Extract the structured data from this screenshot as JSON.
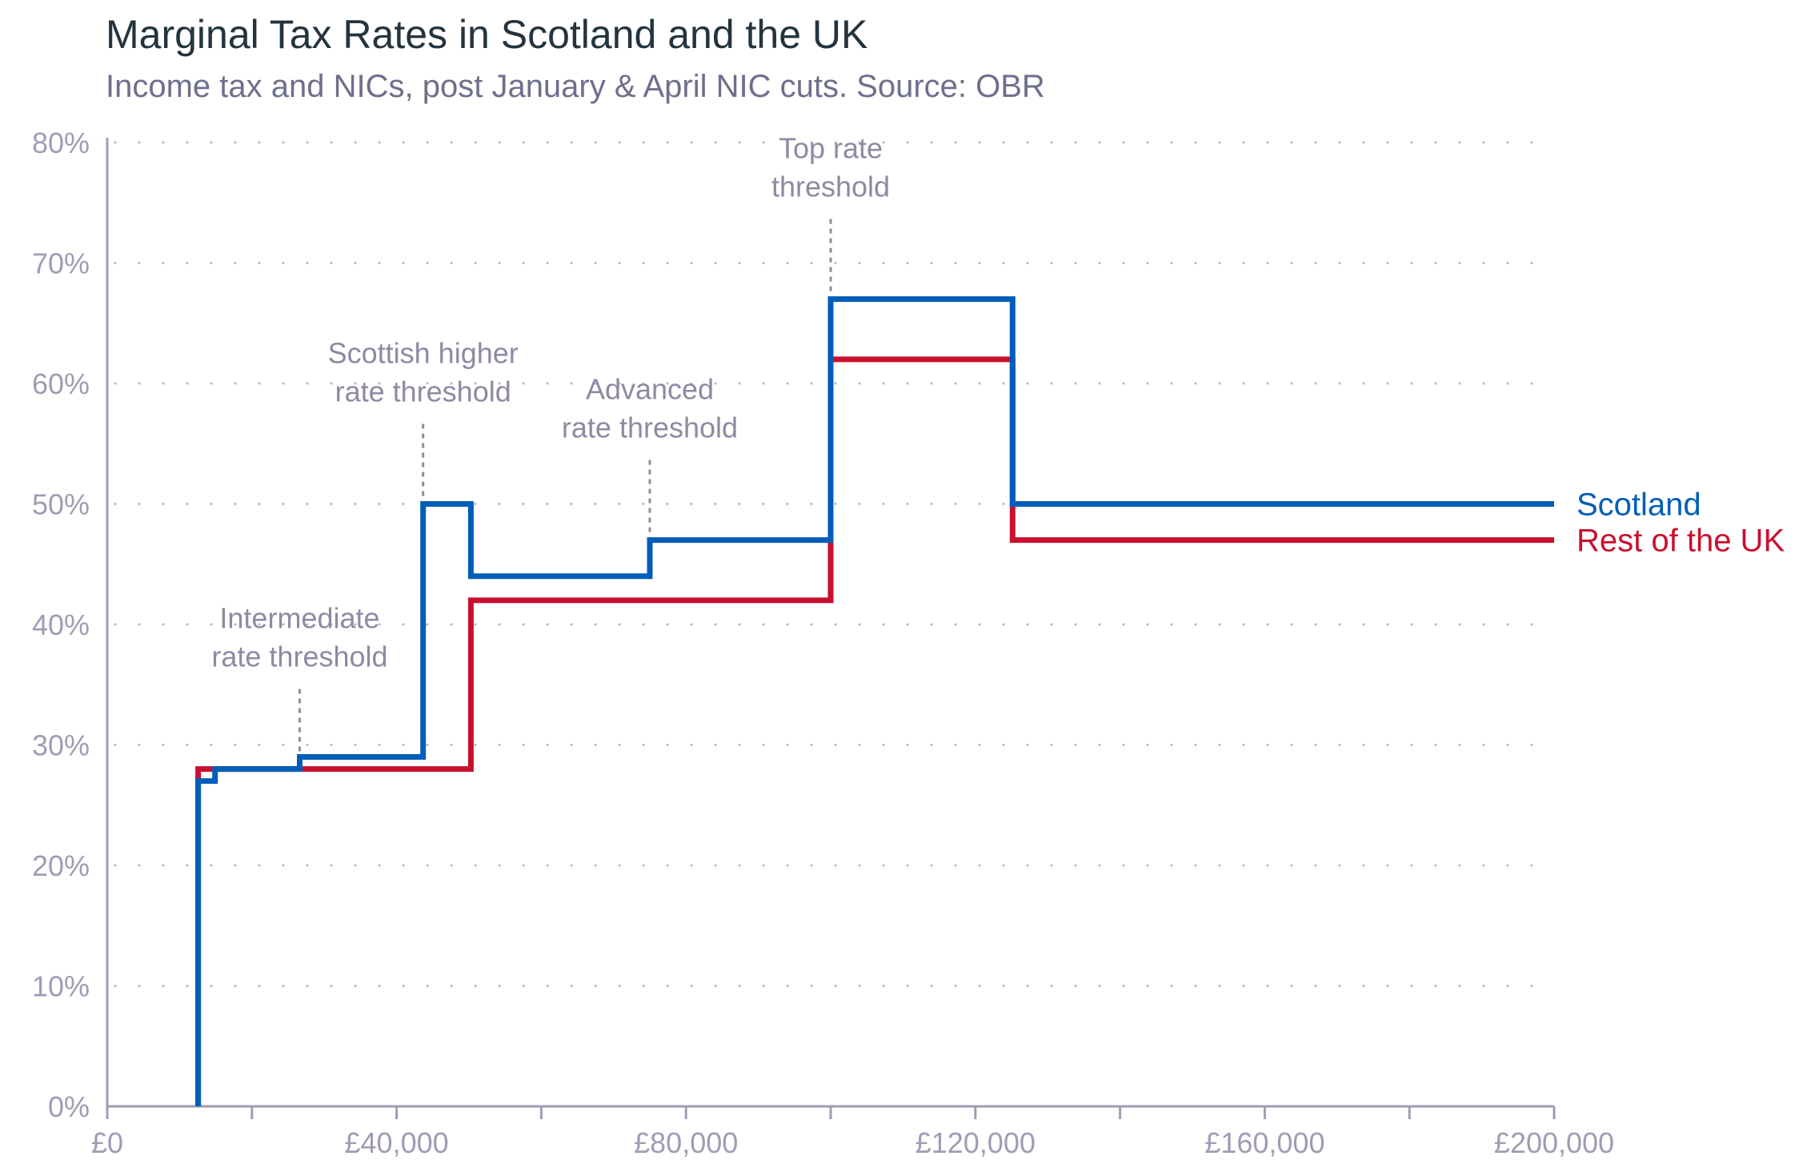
{
  "chart_data": {
    "type": "line",
    "step": true,
    "title": "Marginal Tax Rates in Scotland and the UK",
    "subtitle": "Income tax and NICs, post January & April NIC cuts. Source: OBR",
    "xlabel": "",
    "ylabel": "",
    "xlim": [
      0,
      200000
    ],
    "ylim": [
      0,
      80
    ],
    "x_ticks": [
      0,
      40000,
      80000,
      120000,
      160000,
      200000
    ],
    "x_tick_labels": [
      "£0",
      "£40,000",
      "£80,000",
      "£120,000",
      "£160,000",
      "£200,000"
    ],
    "x_minor_ticks": [
      20000,
      60000,
      100000,
      140000,
      180000
    ],
    "y_ticks": [
      0,
      10,
      20,
      30,
      40,
      50,
      60,
      70,
      80
    ],
    "y_tick_labels": [
      "0%",
      "10%",
      "20%",
      "30%",
      "40%",
      "50%",
      "60%",
      "70%",
      "80%"
    ],
    "grid": "horizontal dotted",
    "legend": "right, at end of lines",
    "series": [
      {
        "name": "Rest of the UK",
        "color": "#c8102e",
        "points": [
          [
            12570,
            0
          ],
          [
            12570,
            28
          ],
          [
            26600,
            28
          ],
          [
            50270,
            28
          ],
          [
            50270,
            42
          ],
          [
            100000,
            42
          ],
          [
            100000,
            62
          ],
          [
            125140,
            62
          ],
          [
            125140,
            47
          ],
          [
            200000,
            47
          ]
        ]
      },
      {
        "name": "Scotland",
        "color": "#005eb8",
        "points": [
          [
            12570,
            0
          ],
          [
            12570,
            27
          ],
          [
            14900,
            27
          ],
          [
            14900,
            28
          ],
          [
            26600,
            28
          ],
          [
            26600,
            29
          ],
          [
            43660,
            29
          ],
          [
            43660,
            50
          ],
          [
            50270,
            50
          ],
          [
            50270,
            44
          ],
          [
            75000,
            44
          ],
          [
            75000,
            47
          ],
          [
            100000,
            47
          ],
          [
            100000,
            67
          ],
          [
            125140,
            67
          ],
          [
            125140,
            50
          ],
          [
            200000,
            50
          ]
        ]
      }
    ],
    "annotations": [
      {
        "x": 26600,
        "y": 28,
        "lines": [
          "Intermediate",
          "rate threshold"
        ]
      },
      {
        "x": 43660,
        "y": 50,
        "lines": [
          "Scottish higher",
          "rate threshold"
        ]
      },
      {
        "x": 75000,
        "y": 47,
        "lines": [
          "Advanced",
          "rate threshold"
        ]
      },
      {
        "x": 100000,
        "y": 67,
        "lines": [
          "Top rate",
          "threshold"
        ]
      }
    ],
    "colors": {
      "axis": "#9d9db4",
      "grid": "#b4b4c6",
      "title": "#23343f",
      "subtitle": "#6e6f8c",
      "annotation": "#8b8ba3"
    }
  }
}
